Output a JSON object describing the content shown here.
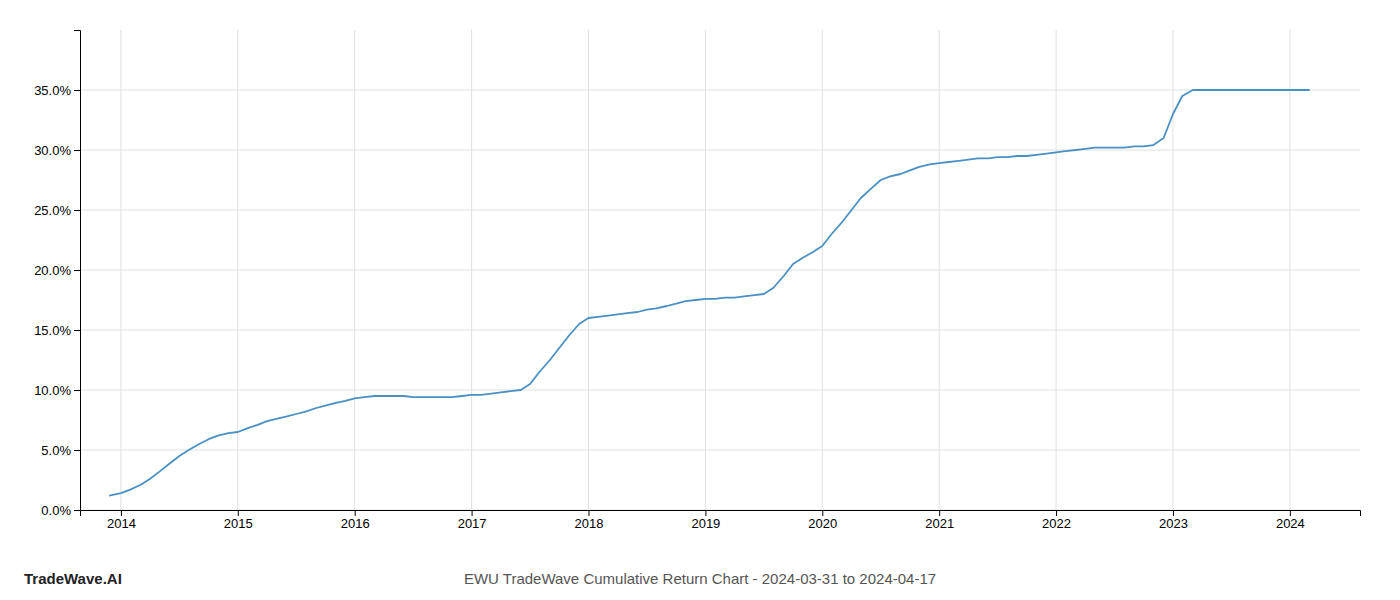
{
  "chart_data": {
    "type": "line",
    "title": "EWU TradeWave Cumulative Return Chart - 2024-03-31 to 2024-04-17",
    "annotations": [
      "TradeWave.AI"
    ],
    "color": "#4a90c4",
    "grid": true,
    "x": [
      2013.9,
      2014.0,
      2014.08,
      2014.17,
      2014.25,
      2014.33,
      2014.42,
      2014.5,
      2014.58,
      2014.67,
      2014.75,
      2014.83,
      2014.92,
      2015.0,
      2015.08,
      2015.17,
      2015.25,
      2015.33,
      2015.42,
      2015.5,
      2015.58,
      2015.67,
      2015.75,
      2015.83,
      2015.92,
      2016.0,
      2016.08,
      2016.17,
      2016.25,
      2016.33,
      2016.42,
      2016.5,
      2016.58,
      2016.67,
      2016.75,
      2016.83,
      2016.92,
      2017.0,
      2017.08,
      2017.17,
      2017.25,
      2017.33,
      2017.42,
      2017.5,
      2017.58,
      2017.67,
      2017.75,
      2017.83,
      2017.92,
      2018.0,
      2018.08,
      2018.17,
      2018.25,
      2018.33,
      2018.42,
      2018.5,
      2018.58,
      2018.67,
      2018.75,
      2018.83,
      2018.92,
      2019.0,
      2019.08,
      2019.17,
      2019.25,
      2019.33,
      2019.42,
      2019.5,
      2019.58,
      2019.67,
      2019.75,
      2019.83,
      2019.92,
      2020.0,
      2020.08,
      2020.17,
      2020.25,
      2020.33,
      2020.42,
      2020.5,
      2020.58,
      2020.67,
      2020.75,
      2020.83,
      2020.92,
      2021.0,
      2021.08,
      2021.17,
      2021.25,
      2021.33,
      2021.42,
      2021.5,
      2021.58,
      2021.67,
      2021.75,
      2021.83,
      2021.92,
      2022.0,
      2022.08,
      2022.17,
      2022.25,
      2022.33,
      2022.42,
      2022.5,
      2022.58,
      2022.67,
      2022.75,
      2022.83,
      2022.92,
      2023.0,
      2023.08,
      2023.17,
      2023.25,
      2023.33,
      2023.42,
      2023.5,
      2023.58,
      2023.67,
      2023.75,
      2023.83,
      2023.92,
      2024.0,
      2024.08,
      2024.17
    ],
    "values": [
      1.2,
      1.4,
      1.7,
      2.1,
      2.6,
      3.2,
      3.9,
      4.5,
      5.0,
      5.5,
      5.9,
      6.2,
      6.4,
      6.5,
      6.8,
      7.1,
      7.4,
      7.6,
      7.8,
      8.0,
      8.2,
      8.5,
      8.7,
      8.9,
      9.1,
      9.3,
      9.4,
      9.5,
      9.5,
      9.5,
      9.5,
      9.4,
      9.4,
      9.4,
      9.4,
      9.4,
      9.5,
      9.6,
      9.6,
      9.7,
      9.8,
      9.9,
      10.0,
      10.5,
      11.5,
      12.5,
      13.5,
      14.5,
      15.5,
      16.0,
      16.1,
      16.2,
      16.3,
      16.4,
      16.5,
      16.7,
      16.8,
      17.0,
      17.2,
      17.4,
      17.5,
      17.6,
      17.6,
      17.7,
      17.7,
      17.8,
      17.9,
      18.0,
      18.5,
      19.5,
      20.5,
      21.0,
      21.5,
      22.0,
      23.0,
      24.0,
      25.0,
      26.0,
      26.8,
      27.5,
      27.8,
      28.0,
      28.3,
      28.6,
      28.8,
      28.9,
      29.0,
      29.1,
      29.2,
      29.3,
      29.3,
      29.4,
      29.4,
      29.5,
      29.5,
      29.6,
      29.7,
      29.8,
      29.9,
      30.0,
      30.1,
      30.2,
      30.2,
      30.2,
      30.2,
      30.3,
      30.3,
      30.4,
      31.0,
      33.0,
      34.5,
      35.0,
      35.0,
      35.0,
      35.0,
      35.0,
      35.0,
      35.0,
      35.0,
      35.0,
      35.0,
      35.0,
      35.0,
      35.0
    ],
    "xlim": [
      2013.65,
      2024.6
    ],
    "xticks": [
      2014,
      2015,
      2016,
      2017,
      2018,
      2019,
      2020,
      2021,
      2022,
      2023,
      2024
    ],
    "ylim": [
      0,
      40
    ],
    "yticks": [
      {
        "value": 0.0,
        "label": "0.0%"
      },
      {
        "value": 5.0,
        "label": "5.0%"
      },
      {
        "value": 10.0,
        "label": "10.0%"
      },
      {
        "value": 15.0,
        "label": "15.0%"
      },
      {
        "value": 20.0,
        "label": "20.0%"
      },
      {
        "value": 25.0,
        "label": "25.0%"
      },
      {
        "value": 30.0,
        "label": "30.0%"
      },
      {
        "value": 35.0,
        "label": "35.0%"
      }
    ]
  }
}
